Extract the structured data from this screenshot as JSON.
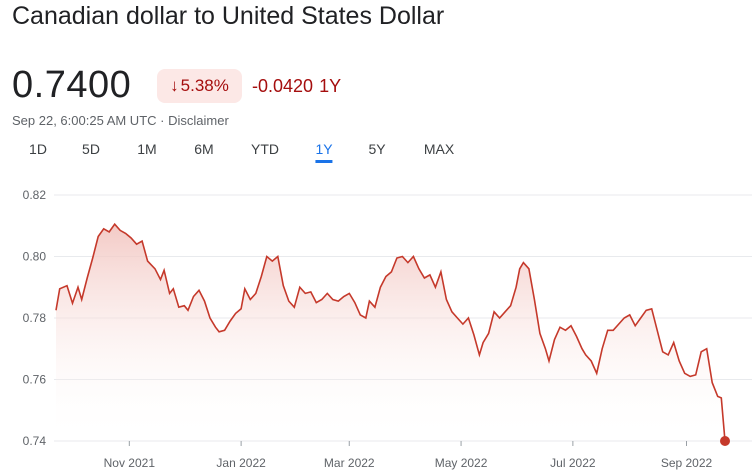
{
  "header": {
    "title": "Canadian dollar to United States Dollar",
    "price": "0.7400",
    "change_percent": "5.38%",
    "change_arrow": "↓",
    "change_abs": "-0.0420",
    "change_period": "1Y",
    "timestamp": "Sep 22, 6:00:25 AM UTC",
    "separator": "·",
    "disclaimer": "Disclaimer"
  },
  "tabs": [
    {
      "label": "1D",
      "active": false
    },
    {
      "label": "5D",
      "active": false
    },
    {
      "label": "1M",
      "active": false
    },
    {
      "label": "6M",
      "active": false
    },
    {
      "label": "YTD",
      "active": false
    },
    {
      "label": "1Y",
      "active": true
    },
    {
      "label": "5Y",
      "active": false
    },
    {
      "label": "MAX",
      "active": false
    }
  ],
  "colors": {
    "line": "#c5392b",
    "fill_top": "#f2c4bf",
    "grid": "#e8eaed",
    "accent": "#1a73e8",
    "negative": "#a50e0e"
  },
  "chart_data": {
    "type": "area",
    "title": "",
    "xlabel": "",
    "ylabel": "",
    "ylim": [
      0.74,
      0.82
    ],
    "yticks": [
      "0.82",
      "0.80",
      "0.78",
      "0.76",
      "0.74"
    ],
    "xticks": [
      "Nov 2021",
      "Jan 2022",
      "Mar 2022",
      "May 2022",
      "Jul 2022",
      "Sep 2022"
    ],
    "grid": "horizontal",
    "series": [
      {
        "points": [
          [
            "2021-09-22",
            0.7825
          ],
          [
            "2021-09-24",
            0.7895
          ],
          [
            "2021-09-28",
            0.7905
          ],
          [
            "2021-10-01",
            0.7848
          ],
          [
            "2021-10-04",
            0.79
          ],
          [
            "2021-10-06",
            0.786
          ],
          [
            "2021-10-09",
            0.793
          ],
          [
            "2021-10-12",
            0.7995
          ],
          [
            "2021-10-15",
            0.8065
          ],
          [
            "2021-10-18",
            0.809
          ],
          [
            "2021-10-21",
            0.808
          ],
          [
            "2021-10-24",
            0.8105
          ],
          [
            "2021-10-27",
            0.8085
          ],
          [
            "2021-10-30",
            0.8075
          ],
          [
            "2021-11-02",
            0.806
          ],
          [
            "2021-11-05",
            0.804
          ],
          [
            "2021-11-08",
            0.805
          ],
          [
            "2021-11-11",
            0.7985
          ],
          [
            "2021-11-15",
            0.796
          ],
          [
            "2021-11-18",
            0.7925
          ],
          [
            "2021-11-20",
            0.7955
          ],
          [
            "2021-11-23",
            0.788
          ],
          [
            "2021-11-25",
            0.7895
          ],
          [
            "2021-11-28",
            0.7835
          ],
          [
            "2021-12-01",
            0.784
          ],
          [
            "2021-12-03",
            0.7825
          ],
          [
            "2021-12-06",
            0.787
          ],
          [
            "2021-12-09",
            0.789
          ],
          [
            "2021-12-12",
            0.7855
          ],
          [
            "2021-12-15",
            0.78
          ],
          [
            "2021-12-18",
            0.777
          ],
          [
            "2021-12-20",
            0.7755
          ],
          [
            "2021-12-23",
            0.776
          ],
          [
            "2021-12-26",
            0.779
          ],
          [
            "2021-12-29",
            0.7815
          ],
          [
            "2022-01-01",
            0.783
          ],
          [
            "2022-01-03",
            0.7895
          ],
          [
            "2022-01-06",
            0.786
          ],
          [
            "2022-01-09",
            0.788
          ],
          [
            "2022-01-12",
            0.7935
          ],
          [
            "2022-01-15",
            0.8
          ],
          [
            "2022-01-18",
            0.7985
          ],
          [
            "2022-01-21",
            0.8
          ],
          [
            "2022-01-24",
            0.7905
          ],
          [
            "2022-01-27",
            0.7855
          ],
          [
            "2022-01-30",
            0.7835
          ],
          [
            "2022-02-02",
            0.79
          ],
          [
            "2022-02-05",
            0.788
          ],
          [
            "2022-02-08",
            0.7885
          ],
          [
            "2022-02-11",
            0.785
          ],
          [
            "2022-02-14",
            0.786
          ],
          [
            "2022-02-17",
            0.788
          ],
          [
            "2022-02-20",
            0.786
          ],
          [
            "2022-02-23",
            0.7855
          ],
          [
            "2022-02-26",
            0.787
          ],
          [
            "2022-03-01",
            0.788
          ],
          [
            "2022-03-04",
            0.785
          ],
          [
            "2022-03-07",
            0.781
          ],
          [
            "2022-03-10",
            0.78
          ],
          [
            "2022-03-12",
            0.7855
          ],
          [
            "2022-03-15",
            0.7835
          ],
          [
            "2022-03-18",
            0.79
          ],
          [
            "2022-03-21",
            0.7935
          ],
          [
            "2022-03-24",
            0.795
          ],
          [
            "2022-03-27",
            0.7995
          ],
          [
            "2022-03-30",
            0.8
          ],
          [
            "2022-04-02",
            0.798
          ],
          [
            "2022-04-05",
            0.8
          ],
          [
            "2022-04-08",
            0.796
          ],
          [
            "2022-04-11",
            0.793
          ],
          [
            "2022-04-14",
            0.794
          ],
          [
            "2022-04-17",
            0.79
          ],
          [
            "2022-04-20",
            0.795
          ],
          [
            "2022-04-23",
            0.786
          ],
          [
            "2022-04-26",
            0.782
          ],
          [
            "2022-04-29",
            0.78
          ],
          [
            "2022-05-02",
            0.778
          ],
          [
            "2022-05-05",
            0.78
          ],
          [
            "2022-05-08",
            0.7745
          ],
          [
            "2022-05-11",
            0.768
          ],
          [
            "2022-05-13",
            0.772
          ],
          [
            "2022-05-16",
            0.775
          ],
          [
            "2022-05-19",
            0.782
          ],
          [
            "2022-05-22",
            0.78
          ],
          [
            "2022-05-25",
            0.782
          ],
          [
            "2022-05-28",
            0.784
          ],
          [
            "2022-05-31",
            0.79
          ],
          [
            "2022-06-02",
            0.796
          ],
          [
            "2022-06-04",
            0.798
          ],
          [
            "2022-06-07",
            0.796
          ],
          [
            "2022-06-10",
            0.786
          ],
          [
            "2022-06-13",
            0.775
          ],
          [
            "2022-06-16",
            0.77
          ],
          [
            "2022-06-18",
            0.766
          ],
          [
            "2022-06-21",
            0.773
          ],
          [
            "2022-06-24",
            0.777
          ],
          [
            "2022-06-27",
            0.776
          ],
          [
            "2022-06-30",
            0.7775
          ],
          [
            "2022-07-03",
            0.774
          ],
          [
            "2022-07-06",
            0.77
          ],
          [
            "2022-07-08",
            0.768
          ],
          [
            "2022-07-11",
            0.766
          ],
          [
            "2022-07-14",
            0.762
          ],
          [
            "2022-07-17",
            0.77
          ],
          [
            "2022-07-20",
            0.776
          ],
          [
            "2022-07-23",
            0.776
          ],
          [
            "2022-07-26",
            0.778
          ],
          [
            "2022-07-29",
            0.78
          ],
          [
            "2022-08-01",
            0.781
          ],
          [
            "2022-08-04",
            0.7775
          ],
          [
            "2022-08-07",
            0.78
          ],
          [
            "2022-08-10",
            0.7825
          ],
          [
            "2022-08-13",
            0.783
          ],
          [
            "2022-08-16",
            0.776
          ],
          [
            "2022-08-19",
            0.769
          ],
          [
            "2022-08-22",
            0.768
          ],
          [
            "2022-08-25",
            0.772
          ],
          [
            "2022-08-28",
            0.766
          ],
          [
            "2022-08-31",
            0.762
          ],
          [
            "2022-09-03",
            0.761
          ],
          [
            "2022-09-06",
            0.7615
          ],
          [
            "2022-09-09",
            0.769
          ],
          [
            "2022-09-12",
            0.77
          ],
          [
            "2022-09-15",
            0.759
          ],
          [
            "2022-09-18",
            0.7545
          ],
          [
            "2022-09-20",
            0.754
          ],
          [
            "2022-09-22",
            0.74
          ]
        ]
      }
    ]
  }
}
